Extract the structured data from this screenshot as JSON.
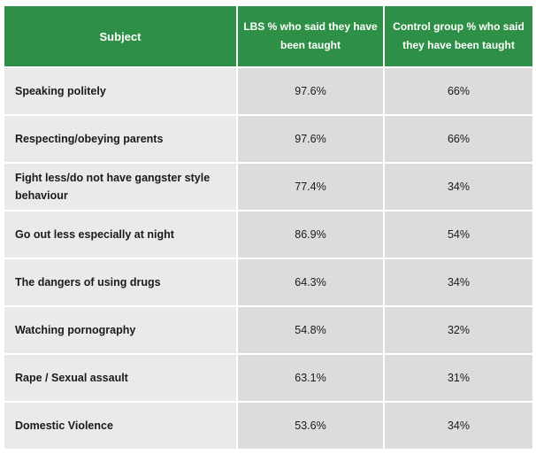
{
  "table": {
    "headers": {
      "subject": "Subject",
      "lbs": "LBS % who said they have been taught",
      "control": "Control group % who said they have been taught"
    },
    "rows": [
      {
        "subject": "Speaking politely",
        "lbs": "97.6%",
        "control": "66%"
      },
      {
        "subject": "Respecting/obeying parents",
        "lbs": "97.6%",
        "control": "66%"
      },
      {
        "subject": "Fight less/do not have gangster style behaviour",
        "lbs": "77.4%",
        "control": "34%"
      },
      {
        "subject": "Go out less especially at night",
        "lbs": "86.9%",
        "control": "54%"
      },
      {
        "subject": "The dangers of using drugs",
        "lbs": "64.3%",
        "control": "34%"
      },
      {
        "subject": "Watching pornography",
        "lbs": "54.8%",
        "control": "32%"
      },
      {
        "subject": "Rape / Sexual assault",
        "lbs": "63.1%",
        "control": "31%"
      },
      {
        "subject": "Domestic Violence",
        "lbs": "53.6%",
        "control": "34%"
      }
    ]
  },
  "colors": {
    "header_bg": "#2e9046",
    "subject_cell_bg": "#eaeaea",
    "value_cell_bg": "#dcdcdc"
  }
}
